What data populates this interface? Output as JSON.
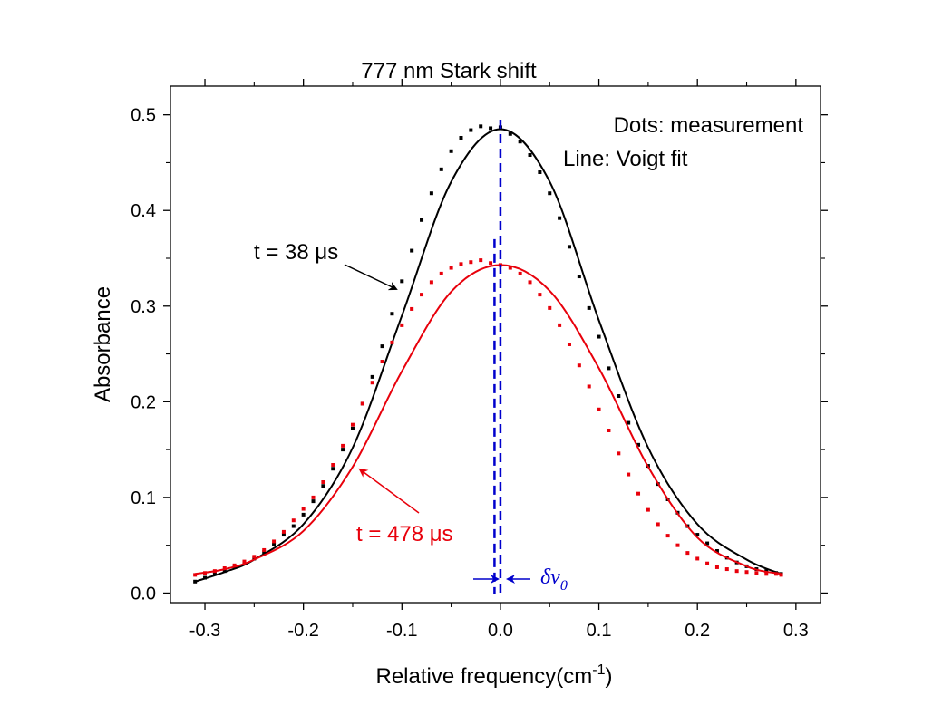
{
  "chart_data": {
    "type": "scatter",
    "title": "777 nm Stark shift",
    "xlabel": "Relative frequency(cm",
    "xlabel_sup": "-1",
    "xlabel_tail": ")",
    "ylabel": "Absorbance",
    "xlim": [
      -0.335,
      0.325
    ],
    "ylim": [
      -0.01,
      0.53
    ],
    "x_ticks": [
      -0.3,
      -0.2,
      -0.1,
      0.0,
      0.1,
      0.2,
      0.3
    ],
    "x_tick_labels": [
      "-0.3",
      "-0.2",
      "-0.1",
      "0.0",
      "0.1",
      "0.2",
      "0.3"
    ],
    "y_ticks": [
      0.0,
      0.1,
      0.2,
      0.3,
      0.4,
      0.5
    ],
    "y_tick_labels": [
      "0.0",
      "0.1",
      "0.2",
      "0.3",
      "0.4",
      "0.5"
    ],
    "grid": false,
    "legend_lines": [
      "Dots: measurement",
      "Line: Voigt fit"
    ],
    "legend_position": "top-right",
    "series": [
      {
        "color": "#000000",
        "label": "t = 38 μs",
        "fit_x": [
          -0.31,
          -0.28,
          -0.25,
          -0.2,
          -0.15,
          -0.1,
          -0.05,
          0.0,
          0.05,
          0.1,
          0.15,
          0.2,
          0.25,
          0.285
        ],
        "fit_y": [
          0.012,
          0.022,
          0.035,
          0.072,
          0.152,
          0.29,
          0.43,
          0.485,
          0.43,
          0.285,
          0.152,
          0.072,
          0.035,
          0.02
        ],
        "dots_x": [
          -0.31,
          -0.3,
          -0.29,
          -0.28,
          -0.27,
          -0.26,
          -0.25,
          -0.24,
          -0.23,
          -0.22,
          -0.21,
          -0.2,
          -0.19,
          -0.18,
          -0.17,
          -0.16,
          -0.15,
          -0.14,
          -0.13,
          -0.12,
          -0.11,
          -0.1,
          -0.09,
          -0.08,
          -0.07,
          -0.06,
          -0.05,
          -0.04,
          -0.03,
          -0.02,
          -0.01,
          0.0,
          0.01,
          0.02,
          0.03,
          0.04,
          0.05,
          0.06,
          0.07,
          0.08,
          0.09,
          0.1,
          0.11,
          0.12,
          0.13,
          0.14,
          0.15,
          0.16,
          0.17,
          0.18,
          0.19,
          0.2,
          0.21,
          0.22,
          0.23,
          0.24,
          0.25,
          0.26,
          0.27,
          0.28,
          0.285
        ],
        "dots_y": [
          0.012,
          0.016,
          0.02,
          0.023,
          0.027,
          0.031,
          0.036,
          0.043,
          0.051,
          0.061,
          0.07,
          0.082,
          0.096,
          0.112,
          0.13,
          0.15,
          0.172,
          0.198,
          0.226,
          0.258,
          0.292,
          0.326,
          0.358,
          0.39,
          0.418,
          0.443,
          0.462,
          0.476,
          0.484,
          0.488,
          0.486,
          0.487,
          0.48,
          0.472,
          0.458,
          0.44,
          0.418,
          0.392,
          0.362,
          0.331,
          0.298,
          0.268,
          0.235,
          0.206,
          0.178,
          0.155,
          0.133,
          0.114,
          0.098,
          0.084,
          0.07,
          0.061,
          0.052,
          0.044,
          0.037,
          0.032,
          0.028,
          0.025,
          0.023,
          0.021,
          0.02
        ]
      },
      {
        "color": "#e8000b",
        "label": "t = 478 μs",
        "fit_x": [
          -0.31,
          -0.28,
          -0.25,
          -0.2,
          -0.15,
          -0.1,
          -0.05,
          0.0,
          0.05,
          0.1,
          0.15,
          0.2,
          0.25,
          0.285
        ],
        "fit_y": [
          0.02,
          0.025,
          0.035,
          0.065,
          0.132,
          0.232,
          0.315,
          0.343,
          0.316,
          0.235,
          0.132,
          0.058,
          0.028,
          0.02
        ],
        "dots_x": [
          -0.31,
          -0.3,
          -0.29,
          -0.28,
          -0.27,
          -0.26,
          -0.25,
          -0.24,
          -0.23,
          -0.22,
          -0.21,
          -0.2,
          -0.19,
          -0.18,
          -0.17,
          -0.16,
          -0.15,
          -0.14,
          -0.13,
          -0.12,
          -0.11,
          -0.1,
          -0.09,
          -0.08,
          -0.07,
          -0.06,
          -0.05,
          -0.04,
          -0.03,
          -0.02,
          -0.01,
          0.0,
          0.01,
          0.02,
          0.03,
          0.04,
          0.05,
          0.06,
          0.07,
          0.08,
          0.09,
          0.1,
          0.11,
          0.12,
          0.13,
          0.14,
          0.15,
          0.16,
          0.17,
          0.18,
          0.19,
          0.2,
          0.21,
          0.22,
          0.23,
          0.24,
          0.25,
          0.26,
          0.27,
          0.28,
          0.285
        ],
        "dots_y": [
          0.019,
          0.021,
          0.023,
          0.026,
          0.029,
          0.033,
          0.038,
          0.045,
          0.054,
          0.064,
          0.076,
          0.088,
          0.1,
          0.116,
          0.134,
          0.154,
          0.176,
          0.198,
          0.22,
          0.242,
          0.262,
          0.28,
          0.297,
          0.312,
          0.325,
          0.334,
          0.34,
          0.344,
          0.346,
          0.348,
          0.345,
          0.343,
          0.34,
          0.334,
          0.325,
          0.312,
          0.298,
          0.28,
          0.26,
          0.238,
          0.216,
          0.192,
          0.17,
          0.146,
          0.124,
          0.104,
          0.087,
          0.072,
          0.06,
          0.05,
          0.042,
          0.036,
          0.031,
          0.027,
          0.025,
          0.023,
          0.022,
          0.021,
          0.02,
          0.02,
          0.019
        ]
      }
    ],
    "annotations": {
      "label_38": "t = 38 μs",
      "label_478": "t = 478 μs",
      "delta_nu_symbol": "δν",
      "delta_nu_sub": "0",
      "black_dashed_x": 0.0,
      "red_dashed_x": -0.006,
      "dashed_color": "#0000cc"
    }
  }
}
